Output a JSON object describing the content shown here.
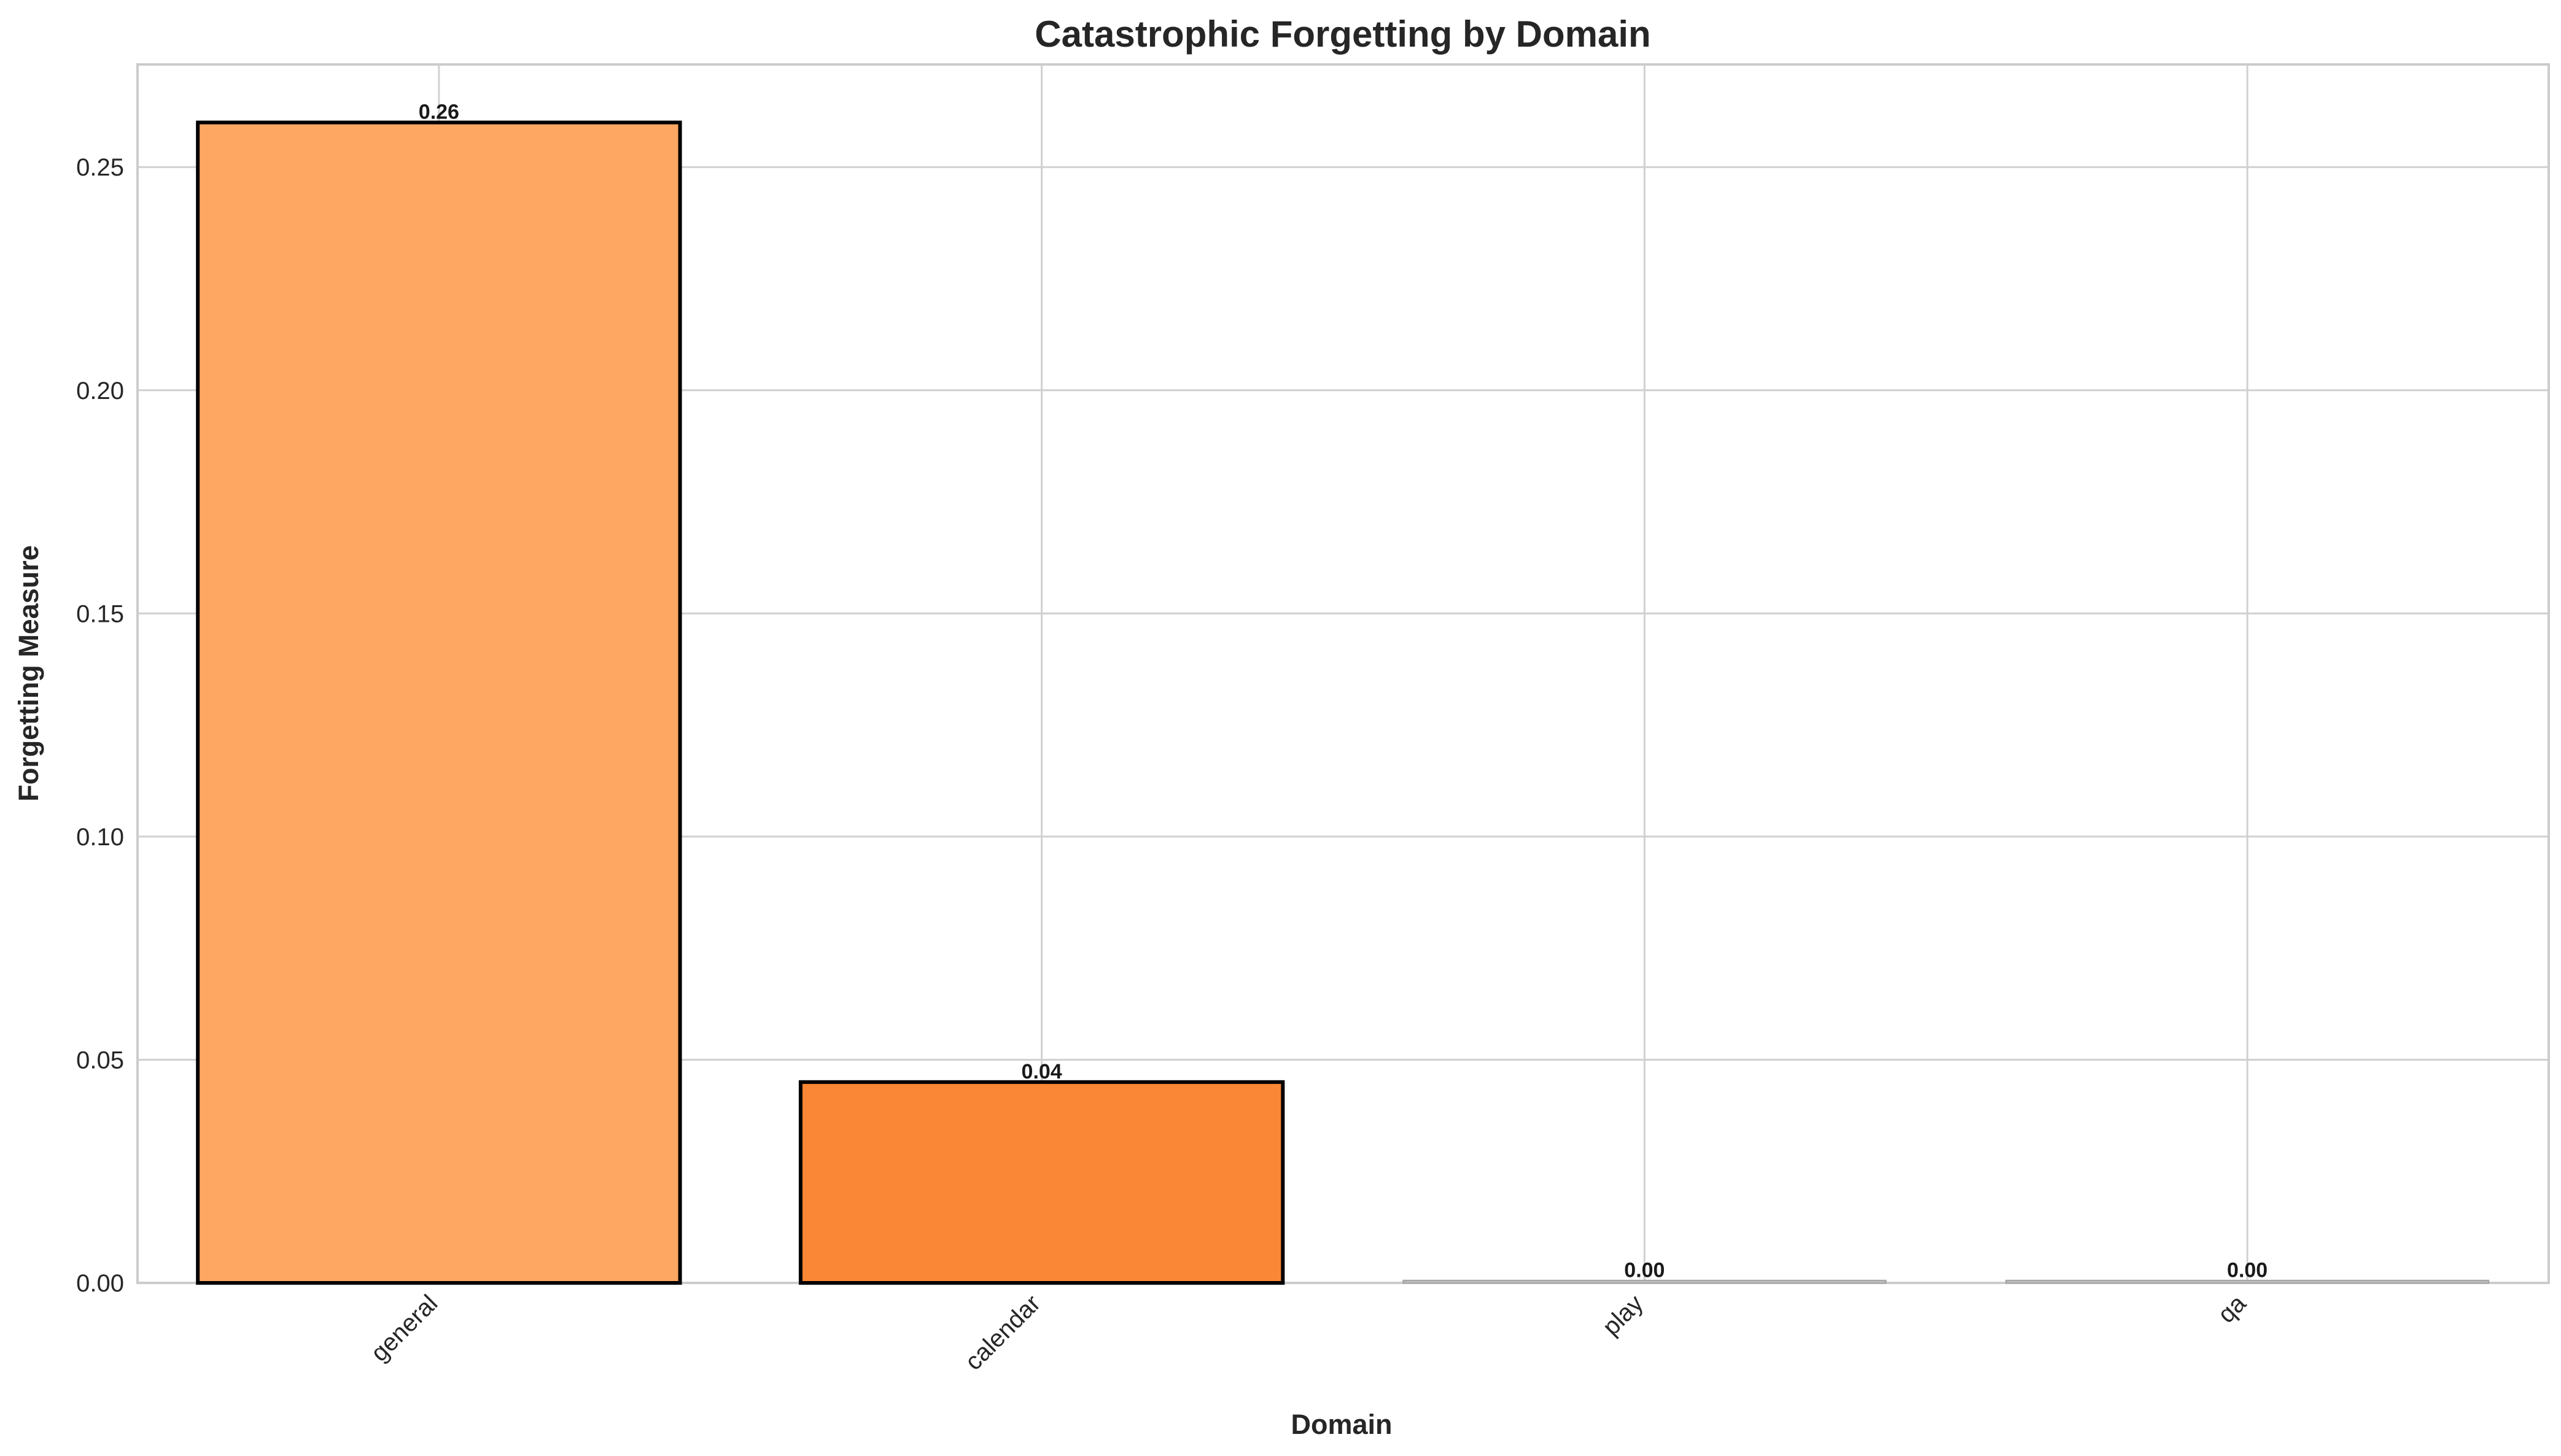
{
  "chart_data": {
    "type": "bar",
    "title": "Catastrophic Forgetting by Domain",
    "xlabel": "Domain",
    "ylabel": "Forgetting Measure",
    "categories": [
      "general",
      "calendar",
      "play",
      "qa"
    ],
    "values": [
      0.26,
      0.045,
      0.0005,
      0.0005
    ],
    "data_labels": [
      "0.26",
      "0.04",
      "0.00",
      "0.00"
    ],
    "bar_colors": [
      "#fda762",
      "#f98735",
      "#f1f1f1",
      "#f1f1f1"
    ],
    "zero_bar_edge_color": "#a8a8a8",
    "bar_edge_color": "#000000",
    "ylim": [
      0,
      0.273
    ],
    "yticks": [
      0.0,
      0.05,
      0.1,
      0.15,
      0.2,
      0.25
    ],
    "ytick_labels": [
      "0.00",
      "0.05",
      "0.10",
      "0.15",
      "0.20",
      "0.25"
    ],
    "grid": true,
    "legend": "none",
    "xtick_rotation_deg": 45
  }
}
